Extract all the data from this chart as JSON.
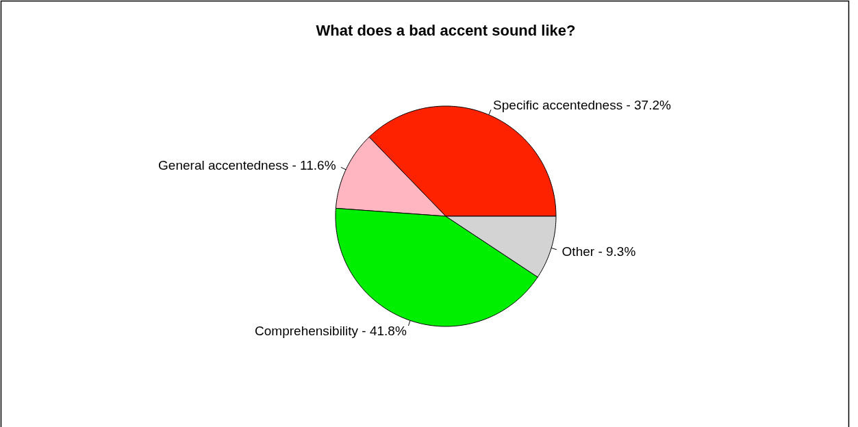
{
  "chart_data": {
    "type": "pie",
    "title": "What does a bad accent sound like?",
    "categories": [
      "Specific accentedness - 37.2%",
      "General accentedness - 11.6%",
      "Comprehensibility - 41.8%",
      "Other - 9.3%"
    ],
    "values": [
      37.2,
      11.6,
      41.8,
      9.3
    ],
    "colors": [
      "#ff2200",
      "#ffb6c1",
      "#00ee00",
      "#d3d3d3"
    ]
  }
}
